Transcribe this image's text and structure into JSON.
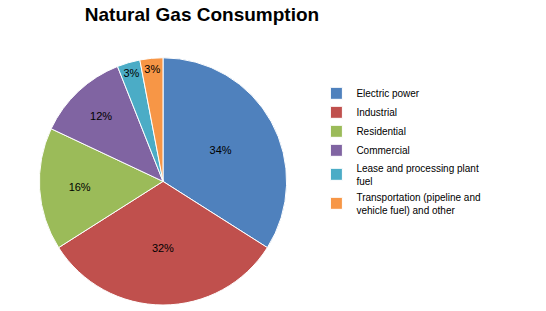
{
  "chart_data": {
    "type": "pie",
    "title": "Natural Gas Consumption",
    "categories": [
      "Electric power",
      "Industrial",
      "Residential",
      "Commercial",
      "Lease and processing plant fuel",
      "Transportation (pipeline and vehicle fuel) and other"
    ],
    "values": [
      34,
      32,
      16,
      12,
      3,
      3
    ],
    "value_labels": [
      "34%",
      "32%",
      "16%",
      "12%",
      "3%",
      "3%"
    ],
    "colors": [
      "#4f81bd",
      "#c0504d",
      "#9bbb59",
      "#8064a2",
      "#4bacc6",
      "#f79646"
    ],
    "data_labels": true,
    "legend": "right"
  }
}
